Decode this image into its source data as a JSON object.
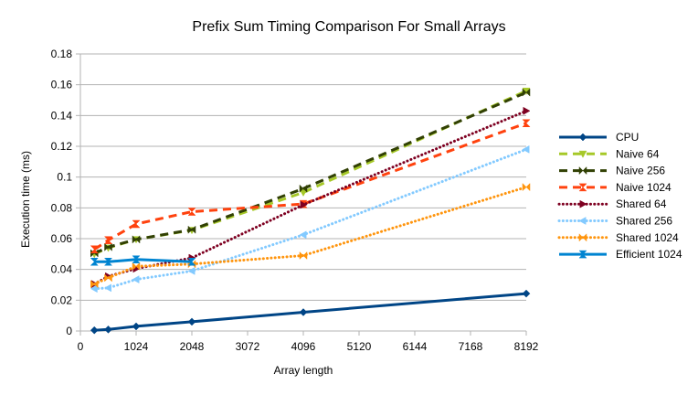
{
  "chart_data": {
    "type": "line",
    "title": "Prefix Sum Timing Comparison For Small Arrays",
    "xlabel": "Array length",
    "ylabel": "Execution time (ms)",
    "xlim": [
      0,
      8192
    ],
    "ylim": [
      0,
      0.18
    ],
    "xticks": [
      0,
      1024,
      2048,
      3072,
      4096,
      5120,
      6144,
      7168,
      8192
    ],
    "yticks": [
      0,
      0.02,
      0.04,
      0.06,
      0.08,
      0.1,
      0.12,
      0.14,
      0.16,
      0.18
    ],
    "grid": "horizontal",
    "legend_position": "right",
    "series": [
      {
        "name": "CPU",
        "color": "#004586",
        "line": "solid",
        "marker": "diamond",
        "points": [
          [
            256,
            0.0005
          ],
          [
            512,
            0.001
          ],
          [
            1024,
            0.003
          ],
          [
            2048,
            0.006
          ],
          [
            4096,
            0.0122
          ],
          [
            8192,
            0.0243
          ]
        ]
      },
      {
        "name": "Naive 64",
        "color": "#a6c828",
        "line": "dashed",
        "marker": "triangle-down",
        "points": [
          [
            256,
            0.05
          ],
          [
            512,
            0.054
          ],
          [
            1024,
            0.0595
          ],
          [
            2048,
            0.0655
          ],
          [
            4096,
            0.09
          ],
          [
            8192,
            0.156
          ]
        ]
      },
      {
        "name": "Naive 256",
        "color": "#314004",
        "line": "dashed",
        "marker": "bowtie",
        "points": [
          [
            256,
            0.0505
          ],
          [
            512,
            0.0545
          ],
          [
            1024,
            0.0595
          ],
          [
            2048,
            0.0658
          ],
          [
            4096,
            0.0925
          ],
          [
            8192,
            0.155
          ]
        ]
      },
      {
        "name": "Naive 1024",
        "color": "#ff420e",
        "line": "dashed",
        "marker": "hourglass",
        "points": [
          [
            256,
            0.053
          ],
          [
            512,
            0.059
          ],
          [
            1024,
            0.0695
          ],
          [
            2048,
            0.0775
          ],
          [
            4096,
            0.0825
          ],
          [
            8192,
            0.135
          ]
        ]
      },
      {
        "name": "Shared 64",
        "color": "#7e0021",
        "line": "dotted",
        "marker": "triangle-right",
        "points": [
          [
            256,
            0.0305
          ],
          [
            512,
            0.0355
          ],
          [
            1024,
            0.0405
          ],
          [
            2048,
            0.0475
          ],
          [
            4096,
            0.082
          ],
          [
            8192,
            0.143
          ]
        ]
      },
      {
        "name": "Shared 256",
        "color": "#83caff",
        "line": "dotted",
        "marker": "triangle-left",
        "points": [
          [
            256,
            0.0275
          ],
          [
            512,
            0.028
          ],
          [
            1024,
            0.0335
          ],
          [
            2048,
            0.039
          ],
          [
            4096,
            0.0625
          ],
          [
            8192,
            0.118
          ]
        ]
      },
      {
        "name": "Shared 1024",
        "color": "#ff950e",
        "line": "dotted",
        "marker": "bowtie",
        "points": [
          [
            256,
            0.0305
          ],
          [
            512,
            0.0345
          ],
          [
            1024,
            0.042
          ],
          [
            2048,
            0.0435
          ],
          [
            4096,
            0.049
          ],
          [
            8192,
            0.0935
          ]
        ]
      },
      {
        "name": "Efficient 1024",
        "color": "#0084d1",
        "line": "solid",
        "marker": "hourglass",
        "points": [
          [
            256,
            0.045
          ],
          [
            512,
            0.045
          ],
          [
            1024,
            0.0465
          ],
          [
            2048,
            0.045
          ]
        ]
      }
    ]
  }
}
